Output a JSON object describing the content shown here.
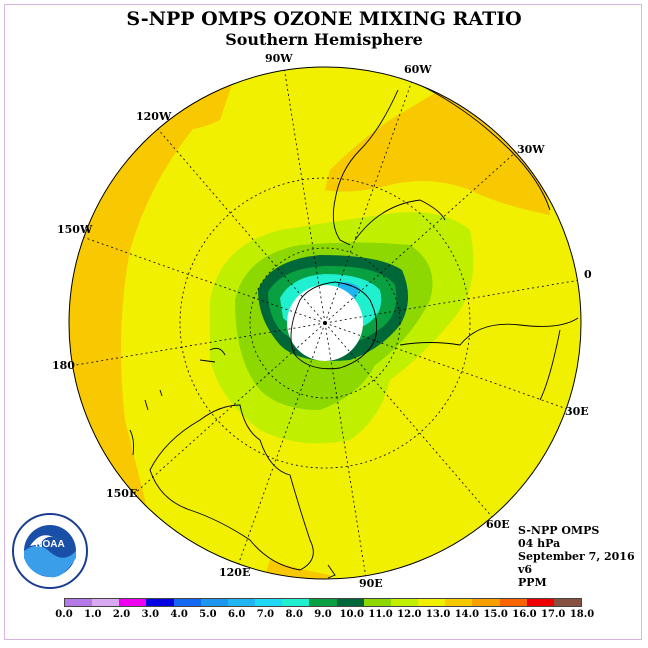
{
  "title": "S-NPP OMPS OZONE MIXING RATIO",
  "subtitle": "Southern Hemisphere",
  "longitude_labels": {
    "lon_90w": "90W",
    "lon_60w": "60W",
    "lon_30w": "30W",
    "lon_0": "0",
    "lon_30e": "30E",
    "lon_60e": "60E",
    "lon_90e": "90E",
    "lon_120e": "120E",
    "lon_150e": "150E",
    "lon_180": "180",
    "lon_150w": "150W",
    "lon_120w": "120W"
  },
  "info": {
    "instrument": "S-NPP OMPS",
    "level": "04 hPa",
    "date": "September 7, 2016",
    "version": "v6",
    "units": "PPM"
  },
  "logo": {
    "text": "NOAA",
    "ring_text": "NATIONAL OCEANIC AND ATMOSPHERIC ADMINISTRATION - U.S. DEPARTMENT OF COMMERCE"
  },
  "colorbar": {
    "colors": [
      "#b57ae8",
      "#d8a8f0",
      "#f000f0",
      "#0000e0",
      "#1468f0",
      "#1e96f0",
      "#20b4f0",
      "#20d8f8",
      "#20f0d0",
      "#08a040",
      "#006838",
      "#8cd800",
      "#c0f000",
      "#f0f000",
      "#f8c800",
      "#f8a000",
      "#f86400",
      "#f00000",
      "#885040"
    ],
    "ticks": [
      "0.0",
      "1.0",
      "2.0",
      "3.0",
      "4.0",
      "5.0",
      "6.0",
      "7.0",
      "8.0",
      "9.0",
      "10.0",
      "11.0",
      "12.0",
      "13.0",
      "14.0",
      "15.0",
      "16.0",
      "17.0",
      "18.0"
    ]
  }
}
